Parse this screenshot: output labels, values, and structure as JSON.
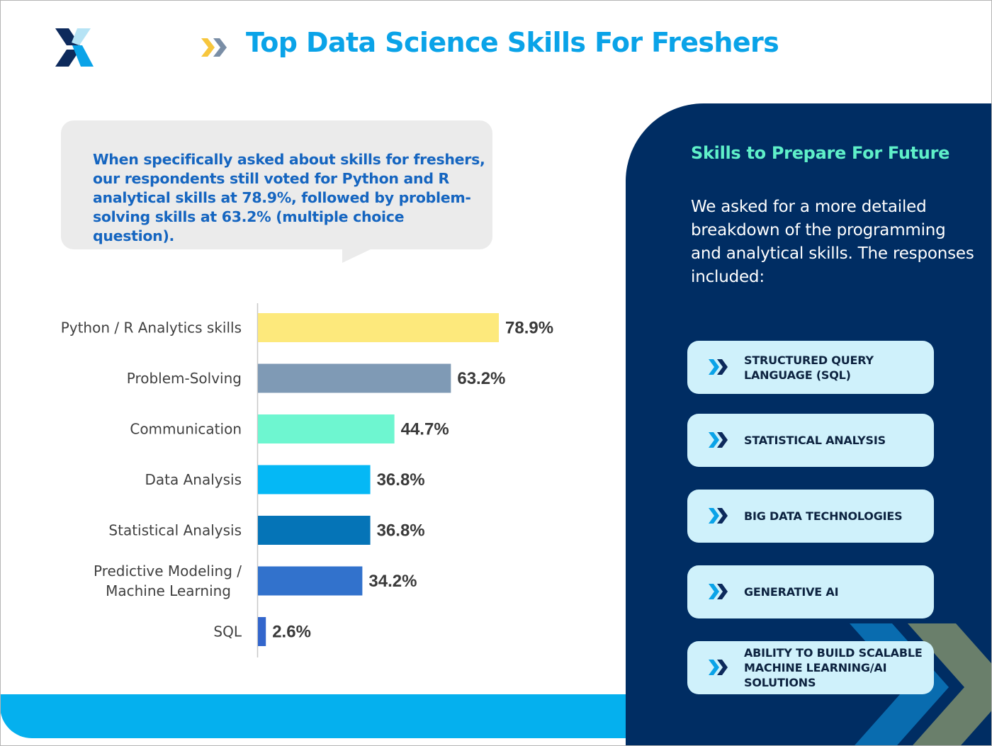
{
  "page": {
    "title": "Top Data Science Skills For Freshers",
    "colors": {
      "title": "#0aa3e8",
      "callout_text": "#1565c0",
      "panel_bg": "#002d63",
      "band": "#05b0ee"
    }
  },
  "callout": {
    "text": "When specifically asked about skills for freshers, our respondents still voted for Python and R analytical skills at 78.9%, followed by problem-solving skills at 63.2% (multiple choice question)."
  },
  "chart_data": {
    "type": "bar",
    "orientation": "horizontal",
    "categories": [
      "Python / R Analytics skills",
      "Problem-Solving",
      "Communication",
      "Data Analysis",
      "Statistical Analysis",
      "Predictive Modeling / Machine Learning",
      "SQL"
    ],
    "category_lines": [
      [
        "Python / R Analytics skills"
      ],
      [
        "Problem-Solving"
      ],
      [
        "Communication"
      ],
      [
        "Data Analysis"
      ],
      [
        "Statistical Analysis"
      ],
      [
        "Predictive Modeling /",
        "Machine Learning"
      ],
      [
        "SQL"
      ]
    ],
    "values": [
      78.9,
      63.2,
      44.7,
      36.8,
      36.8,
      34.2,
      2.6
    ],
    "value_labels": [
      "78.9%",
      "63.2%",
      "44.7%",
      "36.8%",
      "36.8%",
      "34.2%",
      "2.6%"
    ],
    "colors": [
      "#fde97c",
      "#7f9ab5",
      "#6ef6d0",
      "#05b8f5",
      "#0574b7",
      "#3272cc",
      "#3366cc"
    ],
    "xlim": [
      0,
      100
    ],
    "grid": false,
    "title": "",
    "xlabel": "",
    "ylabel": ""
  },
  "panel": {
    "heading": "Skills to Prepare For Future",
    "text": "We asked for a more detailed breakdown of the programming and analytical skills. The responses included:",
    "skills": [
      {
        "label": "STRUCTURED QUERY LANGUAGE (SQL)",
        "icon": "double-chevron-right-icon"
      },
      {
        "label": "STATISTICAL ANALYSIS",
        "icon": "double-chevron-right-icon"
      },
      {
        "label": "BIG DATA TECHNOLOGIES",
        "icon": "double-chevron-right-icon"
      },
      {
        "label": "GENERATIVE AI",
        "icon": "double-chevron-right-icon"
      },
      {
        "label": "ABILITY TO BUILD SCALABLE MACHINE LEARNING/AI SOLUTIONS",
        "icon": "double-chevron-right-icon"
      }
    ]
  }
}
